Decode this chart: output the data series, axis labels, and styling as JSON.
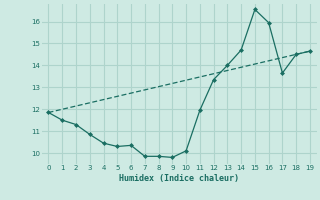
{
  "xlabel": "Humidex (Indice chaleur)",
  "bg_color": "#ceeae3",
  "grid_color": "#aed4cc",
  "line_color": "#1a6e62",
  "xlim": [
    -0.5,
    19.5
  ],
  "ylim": [
    9.5,
    16.8
  ],
  "yticks": [
    10,
    11,
    12,
    13,
    14,
    15,
    16
  ],
  "xticks": [
    0,
    1,
    2,
    3,
    4,
    5,
    6,
    7,
    8,
    9,
    10,
    11,
    12,
    13,
    14,
    15,
    16,
    17,
    18,
    19
  ],
  "line1_x": [
    0,
    1,
    2,
    3,
    4,
    5,
    6,
    7,
    8,
    9,
    10,
    11,
    12,
    13,
    14,
    15,
    16,
    17,
    18,
    19
  ],
  "line1_y": [
    11.85,
    11.5,
    11.3,
    10.85,
    10.45,
    10.3,
    10.35,
    9.85,
    9.85,
    9.8,
    10.1,
    11.95,
    13.35,
    14.0,
    14.7,
    16.55,
    15.95,
    13.65,
    14.5,
    14.65
  ],
  "line2_x": [
    0,
    19
  ],
  "line2_y": [
    11.85,
    14.65
  ]
}
